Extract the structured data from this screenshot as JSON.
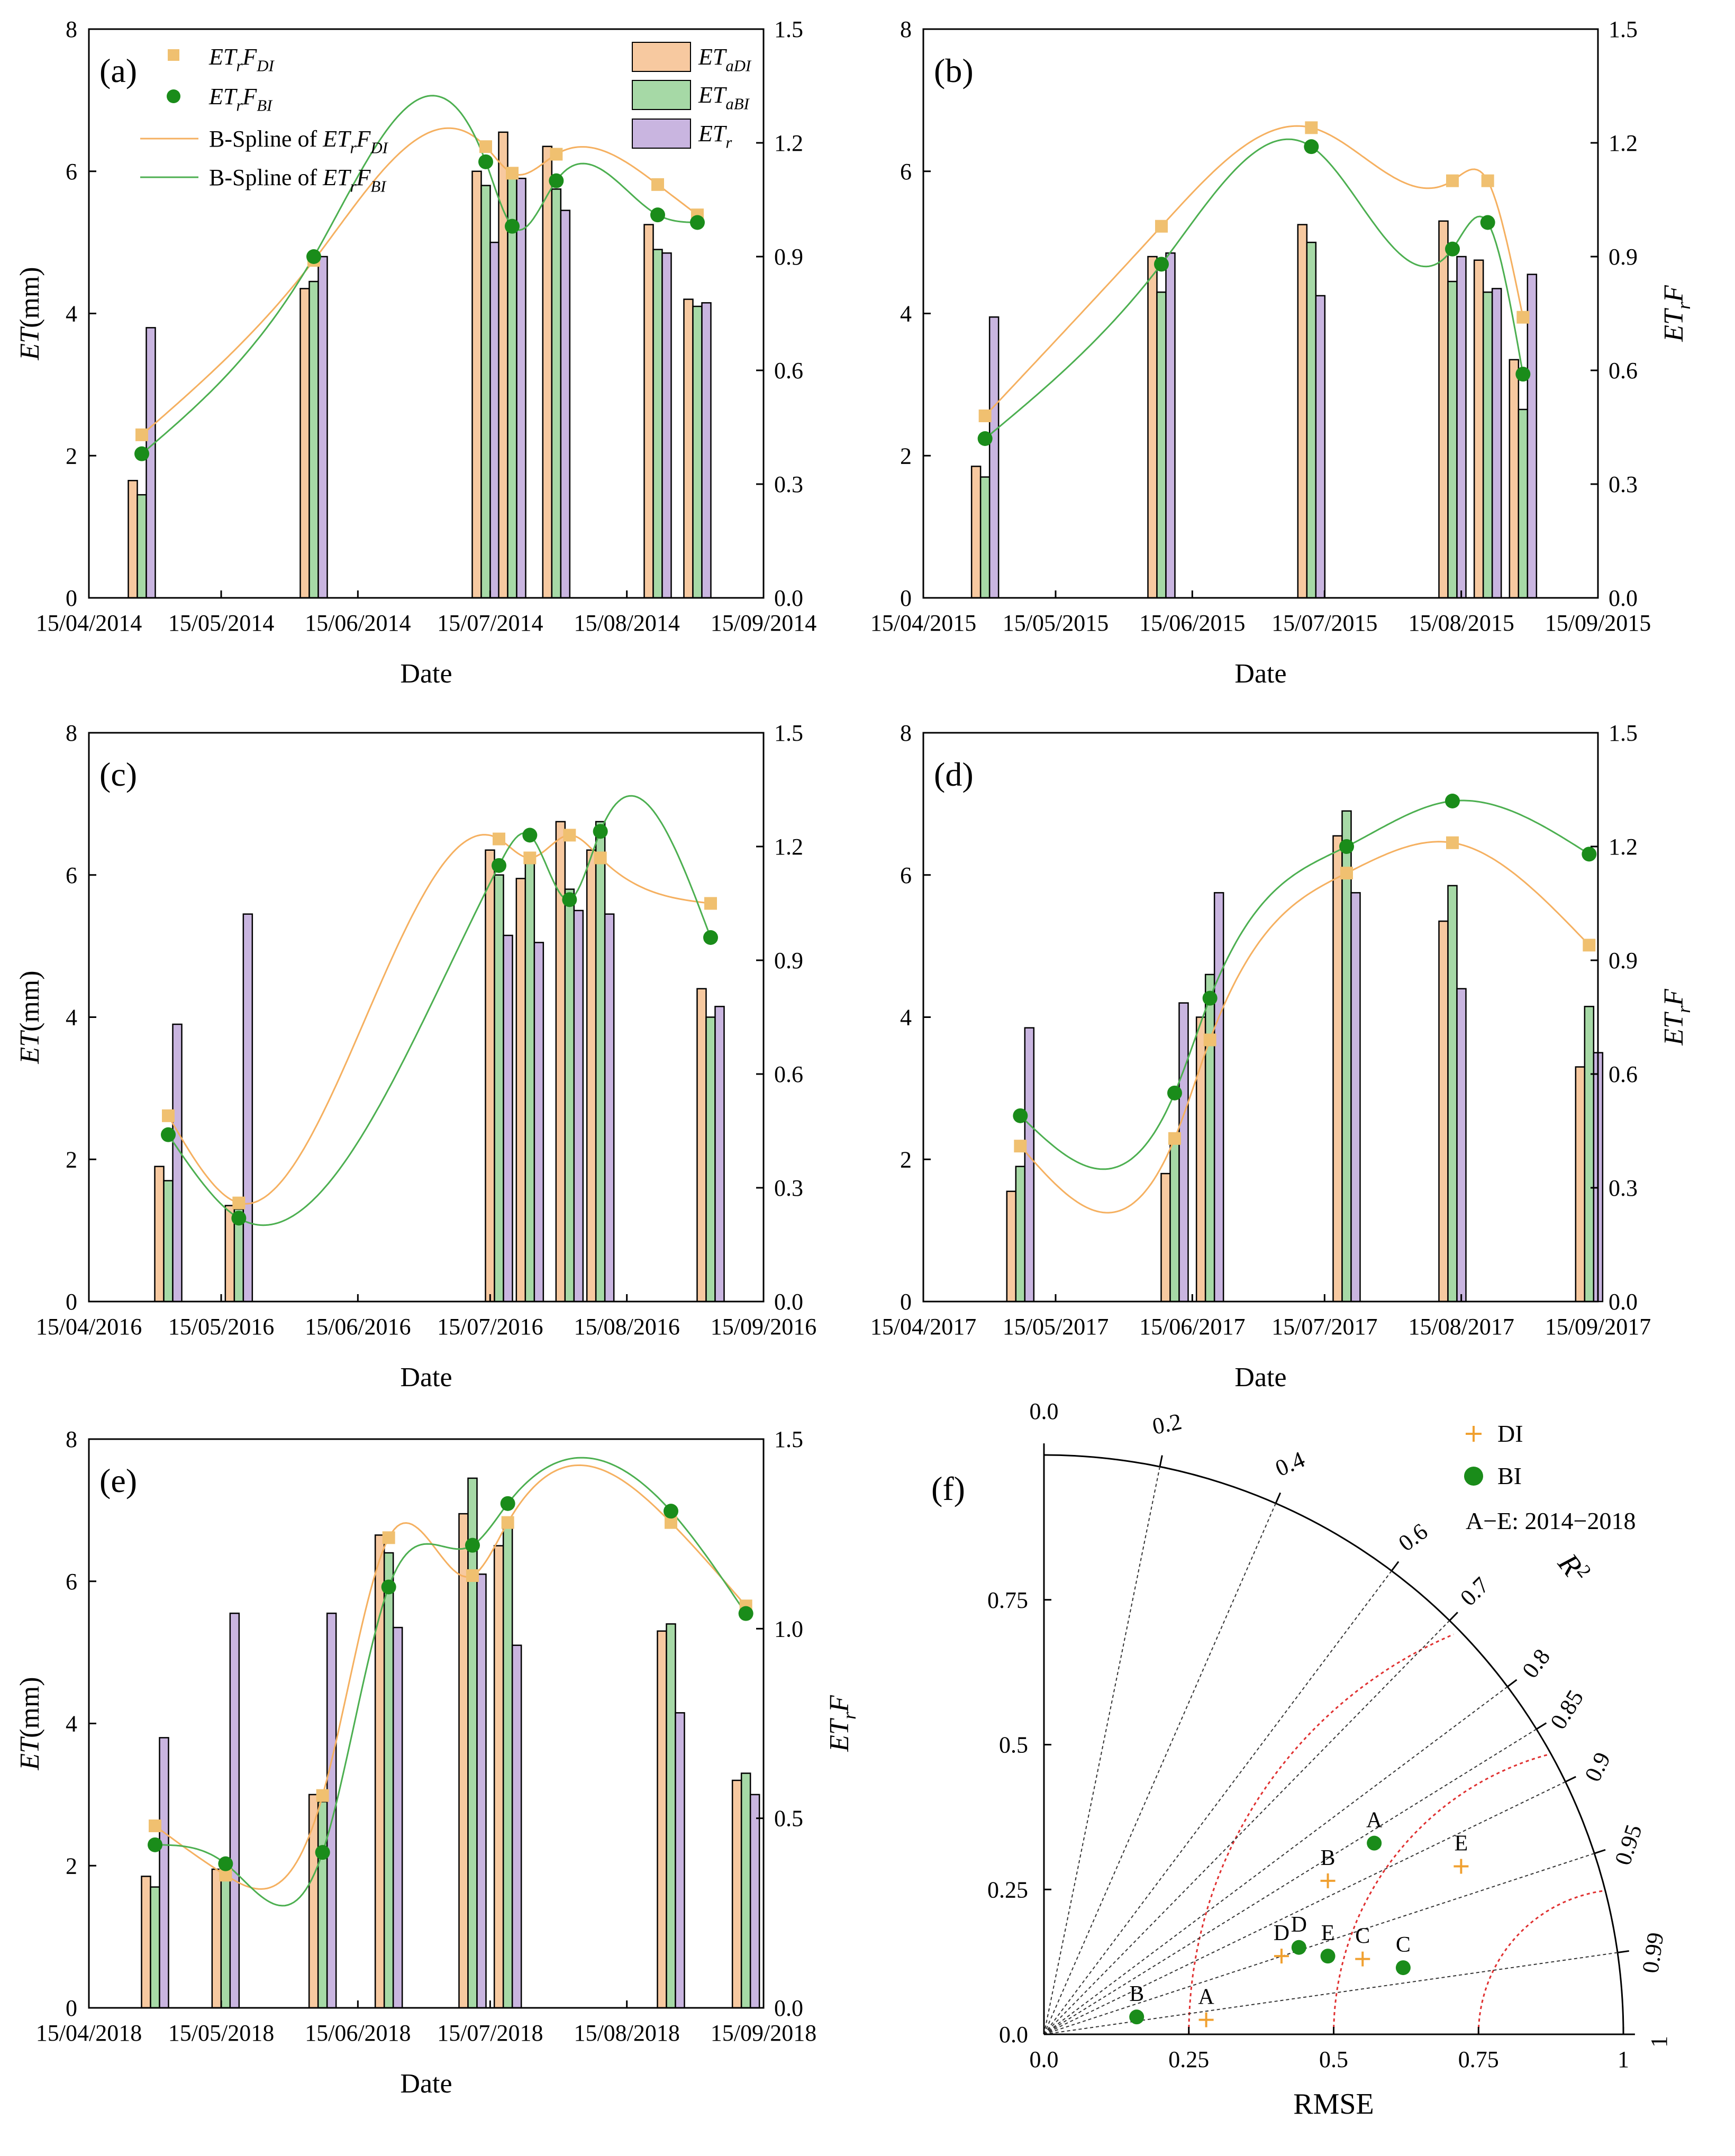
{
  "colors": {
    "di_bar": "#F7C9A0",
    "bi_bar": "#A6D9A6",
    "r_bar": "#C9B5E0",
    "di_point": "#F0C070",
    "bi_point": "#1A8C1A",
    "di_spline": "#F5B060",
    "bi_spline": "#4CAF50",
    "bar_edge": "#000000",
    "taylor_ref": "#E03030"
  },
  "legend": {
    "etrf_di": "ETrFDI",
    "etrf_bi": "ETrFBI",
    "spline_di": "B-Spline of ETrFDI",
    "spline_bi": "B-Spline of ETrFBI",
    "eta_di": "ETaDI",
    "eta_bi": "ETaBI",
    "etr": "ETr"
  },
  "chart_data": [
    {
      "type": "bar",
      "panel": "(a)",
      "xlabel": "Date",
      "ylabel": "ET(mm)",
      "y2label": "",
      "ylim": [
        0,
        8
      ],
      "y2lim": [
        0,
        1.5
      ],
      "yticks": [
        "0",
        "2",
        "4",
        "6",
        "8"
      ],
      "y2ticks": [
        "0.0",
        "0.3",
        "0.6",
        "0.9",
        "1.2",
        "1.5"
      ],
      "xticks": [
        "15/04/2014",
        "15/05/2014",
        "15/06/2014",
        "15/07/2014",
        "15/08/2014",
        "15/09/2014"
      ],
      "dates": [
        "2014-04-27",
        "2014-06-05",
        "2014-07-14",
        "2014-07-20",
        "2014-07-30",
        "2014-08-22",
        "2014-08-31"
      ],
      "eta_di": [
        1.65,
        4.35,
        6.0,
        6.55,
        6.35,
        5.25,
        4.2
      ],
      "eta_bi": [
        1.45,
        4.45,
        5.8,
        5.9,
        5.75,
        4.9,
        4.1
      ],
      "etr": [
        3.8,
        4.8,
        5.0,
        5.9,
        5.45,
        4.85,
        4.15
      ],
      "etrf_di": [
        0.43,
        0.89,
        1.19,
        1.12,
        1.17,
        1.09,
        1.01
      ],
      "etrf_bi": [
        0.38,
        0.9,
        1.15,
        0.98,
        1.1,
        1.01,
        0.99
      ]
    },
    {
      "type": "bar",
      "panel": "(b)",
      "xlabel": "Date",
      "ylabel": "",
      "y2label": "ETrF",
      "ylim": [
        0,
        8
      ],
      "y2lim": [
        0,
        1.5
      ],
      "yticks": [
        "0",
        "2",
        "4",
        "6",
        "8"
      ],
      "y2ticks": [
        "0.0",
        "0.3",
        "0.6",
        "0.9",
        "1.2",
        "1.5"
      ],
      "xticks": [
        "15/04/2015",
        "15/05/2015",
        "15/06/2015",
        "15/07/2015",
        "15/08/2015",
        "15/09/2015"
      ],
      "dates": [
        "2015-04-29",
        "2015-06-08",
        "2015-07-12",
        "2015-08-13",
        "2015-08-21",
        "2015-08-29"
      ],
      "eta_di": [
        1.85,
        4.8,
        5.25,
        5.3,
        4.75,
        3.35
      ],
      "eta_bi": [
        1.7,
        4.3,
        5.0,
        4.45,
        4.3,
        2.65
      ],
      "etr": [
        3.95,
        4.85,
        4.25,
        4.8,
        4.35,
        4.55
      ],
      "etrf_di": [
        0.48,
        0.98,
        1.24,
        1.1,
        1.1,
        0.74
      ],
      "etrf_bi": [
        0.42,
        0.88,
        1.19,
        0.92,
        0.99,
        0.59
      ]
    },
    {
      "type": "bar",
      "panel": "(c)",
      "xlabel": "Date",
      "ylabel": "ET(mm)",
      "y2label": "",
      "ylim": [
        0,
        8
      ],
      "y2lim": [
        0,
        1.5
      ],
      "yticks": [
        "0",
        "2",
        "4",
        "6",
        "8"
      ],
      "y2ticks": [
        "0.0",
        "0.3",
        "0.6",
        "0.9",
        "1.2",
        "1.5"
      ],
      "xticks": [
        "15/04/2016",
        "15/05/2016",
        "15/06/2016",
        "15/07/2016",
        "15/08/2016",
        "15/09/2016"
      ],
      "dates": [
        "2016-05-03",
        "2016-05-19",
        "2016-07-17",
        "2016-07-24",
        "2016-08-02",
        "2016-08-09",
        "2016-09-03"
      ],
      "eta_di": [
        1.9,
        1.35,
        6.35,
        5.95,
        6.75,
        6.35,
        4.4
      ],
      "eta_bi": [
        1.7,
        1.3,
        6.0,
        6.2,
        5.8,
        6.75,
        4.0
      ],
      "etr": [
        3.9,
        5.45,
        5.15,
        5.05,
        5.5,
        5.45,
        4.15
      ],
      "etrf_di": [
        0.49,
        0.26,
        1.22,
        1.17,
        1.23,
        1.17,
        1.05
      ],
      "etrf_bi": [
        0.44,
        0.22,
        1.15,
        1.23,
        1.06,
        1.24,
        0.96
      ]
    },
    {
      "type": "bar",
      "panel": "(d)",
      "xlabel": "Date",
      "ylabel": "",
      "y2label": "ETrF",
      "ylim": [
        0,
        8
      ],
      "y2lim": [
        0,
        1.5
      ],
      "yticks": [
        "0",
        "2",
        "4",
        "6",
        "8"
      ],
      "y2ticks": [
        "0.0",
        "0.3",
        "0.6",
        "0.9",
        "1.2",
        "1.5"
      ],
      "xticks": [
        "15/04/2017",
        "15/05/2017",
        "15/06/2017",
        "15/07/2017",
        "15/08/2017",
        "15/09/2017"
      ],
      "dates": [
        "2017-05-07",
        "2017-06-11",
        "2017-06-19",
        "2017-07-20",
        "2017-08-13",
        "2017-09-13"
      ],
      "eta_di": [
        1.55,
        1.8,
        4.0,
        6.55,
        5.35,
        3.3
      ],
      "eta_bi": [
        1.9,
        2.25,
        4.6,
        6.9,
        5.85,
        4.15
      ],
      "etr": [
        3.85,
        4.2,
        5.75,
        5.75,
        4.4,
        3.5
      ],
      "etrf_di": [
        0.41,
        0.43,
        0.69,
        1.13,
        1.21,
        0.94
      ],
      "etrf_bi": [
        0.49,
        0.55,
        0.8,
        1.2,
        1.32,
        1.18
      ]
    },
    {
      "type": "bar",
      "panel": "(e)",
      "xlabel": "Date",
      "ylabel": "ET(mm)",
      "y2label": "ETrF",
      "ylim": [
        0,
        8
      ],
      "y2lim": [
        0,
        1.5
      ],
      "yticks": [
        "0",
        "2",
        "4",
        "6",
        "8"
      ],
      "y2ticks": [
        "0.0",
        "0.5",
        "1.0",
        "1.5"
      ],
      "xticks": [
        "15/04/2018",
        "15/05/2018",
        "15/06/2018",
        "15/07/2018",
        "15/08/2018",
        "15/09/2018"
      ],
      "dates": [
        "2018-04-30",
        "2018-05-16",
        "2018-06-07",
        "2018-06-22",
        "2018-07-11",
        "2018-07-19",
        "2018-08-25",
        "2018-09-11"
      ],
      "eta_di": [
        1.85,
        1.95,
        3.0,
        6.65,
        6.95,
        6.5,
        5.3,
        3.2
      ],
      "eta_bi": [
        1.7,
        1.8,
        2.9,
        6.4,
        7.45,
        6.85,
        5.4,
        3.3
      ],
      "etr": [
        3.8,
        5.55,
        5.55,
        5.35,
        6.1,
        5.1,
        4.15,
        3.0
      ],
      "etrf_di": [
        0.48,
        0.35,
        0.56,
        1.24,
        1.14,
        1.28,
        1.28,
        1.06
      ],
      "etrf_bi": [
        0.43,
        0.38,
        0.41,
        1.11,
        1.22,
        1.33,
        1.31,
        1.04
      ]
    },
    {
      "type": "scatter",
      "panel": "(f)",
      "subtype": "taylor",
      "xlabel": "RMSE",
      "corr_label": "R2",
      "ticks": [
        "0.0",
        "0.25",
        "0.5",
        "0.75",
        "1"
      ],
      "corr_ticks": [
        "0.0",
        "0.2",
        "0.4",
        "0.6",
        "0.7",
        "0.8",
        "0.85",
        "0.9",
        "0.95",
        "0.99",
        "1"
      ],
      "corr_values": [
        0.0,
        0.2,
        0.4,
        0.6,
        0.7,
        0.8,
        0.85,
        0.9,
        0.95,
        0.99,
        1.0
      ],
      "rmse_arcs": [
        0.25,
        0.5,
        0.75
      ],
      "legend": {
        "di": "DI",
        "bi": "BI",
        "note": "A−E: 2014−2018"
      },
      "series": [
        {
          "name": "DI",
          "labels": [
            "A",
            "B",
            "C",
            "D",
            "E"
          ],
          "x": [
            0.28,
            0.49,
            0.55,
            0.41,
            0.72
          ],
          "y": [
            0.025,
            0.265,
            0.13,
            0.135,
            0.29
          ]
        },
        {
          "name": "BI",
          "labels": [
            "A",
            "B",
            "C",
            "D",
            "E"
          ],
          "x": [
            0.57,
            0.16,
            0.62,
            0.44,
            0.49
          ],
          "y": [
            0.33,
            0.03,
            0.115,
            0.15,
            0.135
          ]
        }
      ]
    }
  ]
}
